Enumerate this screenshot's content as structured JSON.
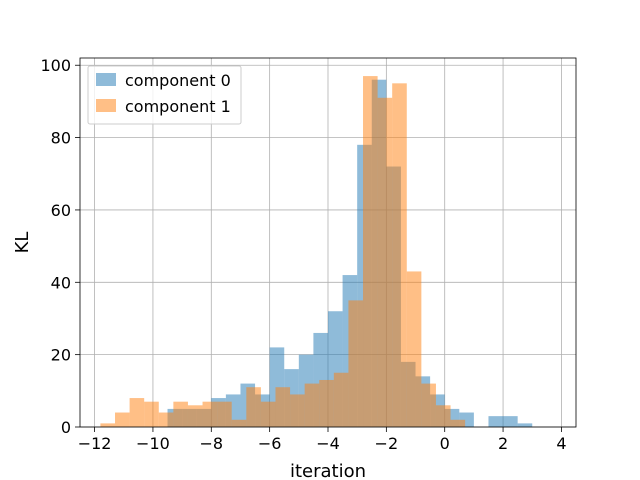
{
  "chart_data": {
    "type": "histogram",
    "xlabel": "iteration",
    "ylabel": "KL",
    "xlim": [
      -12.5,
      4.5
    ],
    "ylim": [
      0,
      102
    ],
    "xticks": [
      -12,
      -10,
      -8,
      -6,
      -4,
      -2,
      0,
      2,
      4
    ],
    "yticks": [
      0,
      20,
      40,
      60,
      80,
      100
    ],
    "grid": true,
    "legend_position": "top-left",
    "series": [
      {
        "name": "component 0",
        "color": "#1f77b4",
        "bin_start": -9.5,
        "bin_width": 0.5,
        "counts": [
          5,
          5,
          5,
          8,
          9,
          12,
          9,
          22,
          16,
          20,
          26,
          32,
          42,
          78,
          96,
          72,
          18,
          14,
          9,
          5,
          4,
          0,
          3,
          3,
          1
        ]
      },
      {
        "name": "component 1",
        "color": "#ff7f0e",
        "bin_start": -11.8,
        "bin_width": 0.5,
        "counts": [
          1,
          4,
          8,
          7,
          4,
          7,
          6,
          7,
          7,
          2,
          11,
          7,
          11,
          9,
          12,
          13,
          15,
          35,
          97,
          91,
          95,
          43,
          12,
          6,
          2
        ]
      }
    ]
  }
}
